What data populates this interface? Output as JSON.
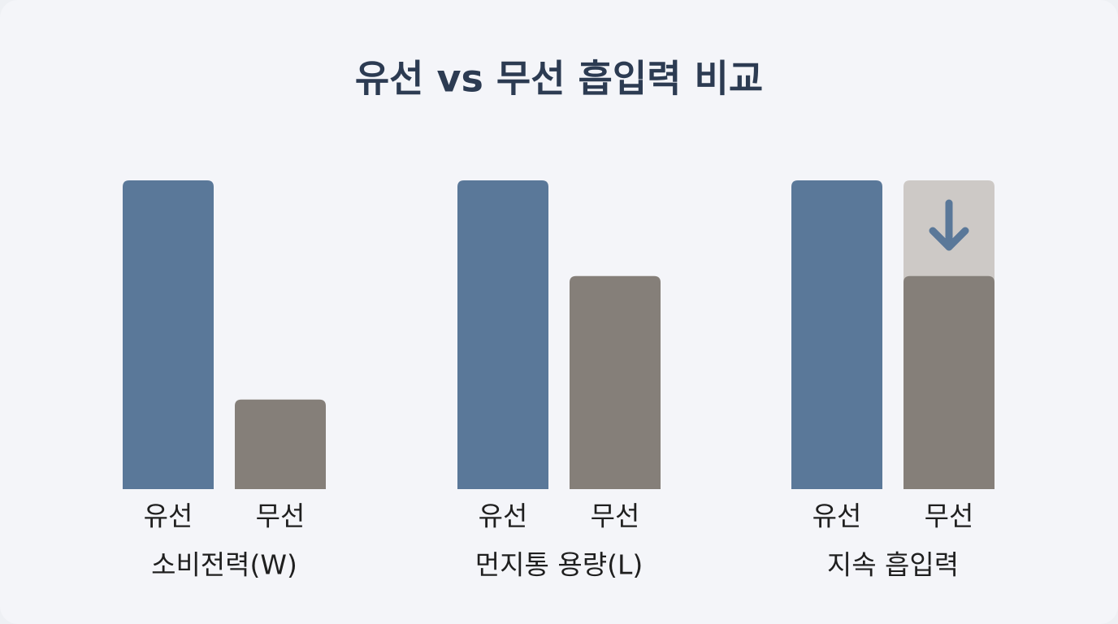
{
  "title": "유선 vs 무선 흡입력 비교",
  "chart_data": [
    {
      "type": "bar",
      "xlabel": "소비전력(W)",
      "categories": [
        "유선",
        "무선"
      ],
      "values": [
        100,
        29
      ],
      "colors": [
        "#5a7899",
        "#857f79"
      ],
      "ylim": [
        0,
        100
      ]
    },
    {
      "type": "bar",
      "xlabel": "먼지통 용량(L)",
      "categories": [
        "유선",
        "무선"
      ],
      "values": [
        100,
        69
      ],
      "colors": [
        "#5a7899",
        "#857f79"
      ],
      "ylim": [
        0,
        100
      ]
    },
    {
      "type": "bar",
      "xlabel": "지속 흡입력",
      "categories": [
        "유선",
        "무선"
      ],
      "values": [
        100,
        69
      ],
      "reference_values": [
        null,
        100
      ],
      "reference_color": "#cdc9c6",
      "colors": [
        "#5a7899",
        "#857f79"
      ],
      "ylim": [
        0,
        100
      ]
    }
  ]
}
